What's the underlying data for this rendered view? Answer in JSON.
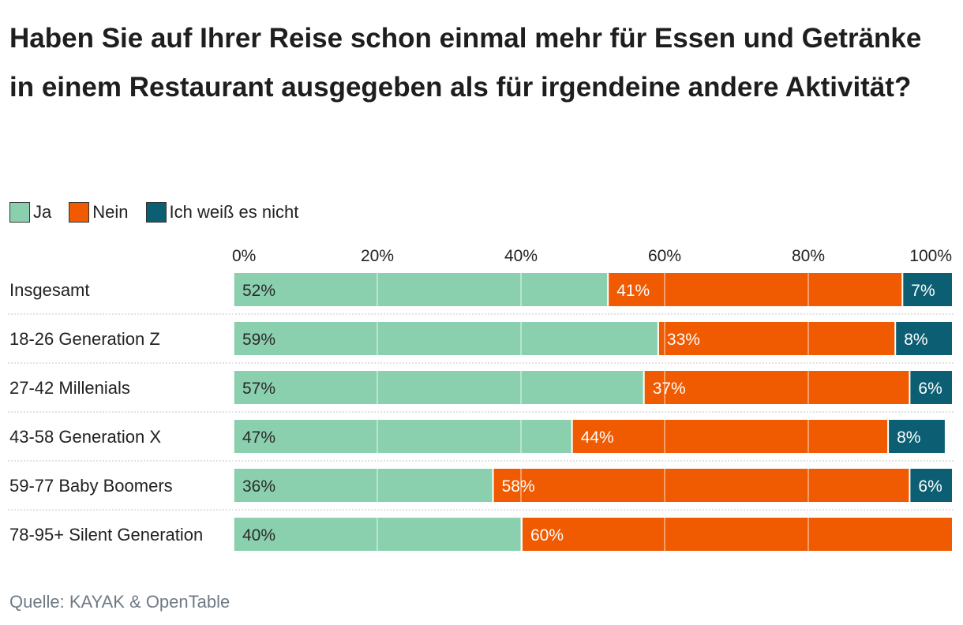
{
  "title": "Haben Sie auf Ihrer Reise schon einmal mehr für Essen und Getränke in einem Restaurant ausgegeben als für irgendeine andere Aktivität?",
  "source": "Quelle: KAYAK & OpenTable",
  "colors": {
    "ja": "#8bd0ae",
    "nein": "#f05a00",
    "weiss_nicht": "#0c5f73"
  },
  "chart_data": {
    "type": "bar",
    "orientation": "horizontal",
    "stacked": true,
    "categories": [
      "Insgesamt",
      "18-26 Generation Z",
      "27-42 Millenials",
      "43-58 Generation X",
      "59-77 Baby Boomers",
      "78-95+ Silent Generation"
    ],
    "series": [
      {
        "name": "Ja",
        "color": "#8bd0ae",
        "values": [
          52,
          59,
          57,
          47,
          36,
          40
        ]
      },
      {
        "name": "Nein",
        "color": "#f05a00",
        "values": [
          41,
          33,
          37,
          44,
          58,
          60
        ]
      },
      {
        "name": "Ich weiß es nicht",
        "color": "#0c5f73",
        "values": [
          7,
          8,
          6,
          8,
          6,
          0
        ]
      }
    ],
    "xlim": [
      0,
      100
    ],
    "xticks": [
      "0%",
      "20%",
      "40%",
      "60%",
      "80%",
      "100%"
    ],
    "value_suffix": "%",
    "grid": true,
    "legend_position": "top-left"
  }
}
